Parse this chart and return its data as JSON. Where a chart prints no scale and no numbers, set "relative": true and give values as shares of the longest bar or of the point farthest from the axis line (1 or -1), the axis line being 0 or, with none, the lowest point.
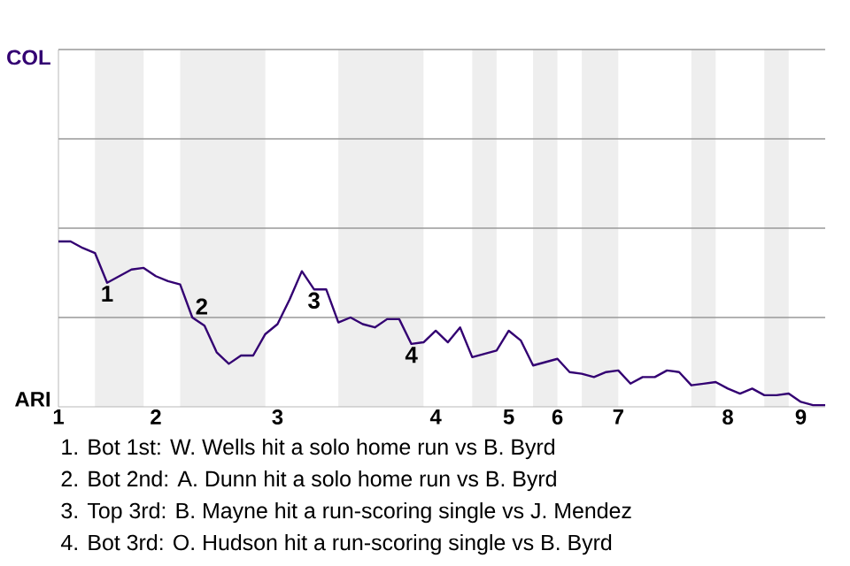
{
  "chart_data": {
    "type": "line",
    "categories": [
      "1",
      null,
      null,
      null,
      null,
      null,
      null,
      null,
      "2",
      null,
      null,
      null,
      null,
      null,
      null,
      null,
      null,
      null,
      "3",
      null,
      null,
      null,
      null,
      null,
      null,
      null,
      null,
      null,
      null,
      null,
      null,
      "4",
      null,
      null,
      null,
      null,
      null,
      "5",
      null,
      null,
      null,
      "6",
      null,
      null,
      null,
      null,
      "7",
      null,
      null,
      null,
      null,
      null,
      null,
      null,
      null,
      "8",
      null,
      null,
      null,
      null,
      null,
      "9",
      null,
      null
    ],
    "relative": true,
    "series": [
      {
        "color": "#330072",
        "values": [
          1,
          1,
          0.96,
          0.93,
          0.75,
          0.79,
          0.83,
          0.84,
          0.79,
          0.76,
          0.74,
          0.54,
          0.49,
          0.33,
          0.26,
          0.31,
          0.31,
          0.44,
          0.5,
          0.65,
          0.82,
          0.71,
          0.71,
          0.51,
          0.54,
          0.5,
          0.48,
          0.53,
          0.53,
          0.38,
          0.39,
          0.46,
          0.39,
          0.48,
          0.3,
          0.32,
          0.34,
          0.46,
          0.4,
          0.25,
          0.27,
          0.29,
          0.21,
          0.2,
          0.18,
          0.21,
          0.22,
          0.14,
          0.18,
          0.18,
          0.22,
          0.21,
          0.13,
          0.14,
          0.15,
          0.11,
          0.08,
          0.11,
          0.07,
          0.07,
          0.08,
          0.03,
          0.01,
          0.01
        ]
      }
    ],
    "line_style": "solid",
    "ref_lines": [
      {
        "axis": "y",
        "value": 0.54,
        "color": "#999999"
      }
    ],
    "annotations": [
      "COL",
      "ARI",
      "1",
      "2",
      "3",
      "4",
      "1. Bot 1st: W. Wells hit a solo home run vs B. Byrd",
      "2. Bot 2nd: A. Dunn hit a solo home run vs B. Byrd",
      "3. Top 3rd: B. Mayne hit a run-scoring single vs J. Mendez",
      "4. Bot 3rd: O. Hudson hit a run-scoring single vs B. Byrd"
    ]
  }
}
